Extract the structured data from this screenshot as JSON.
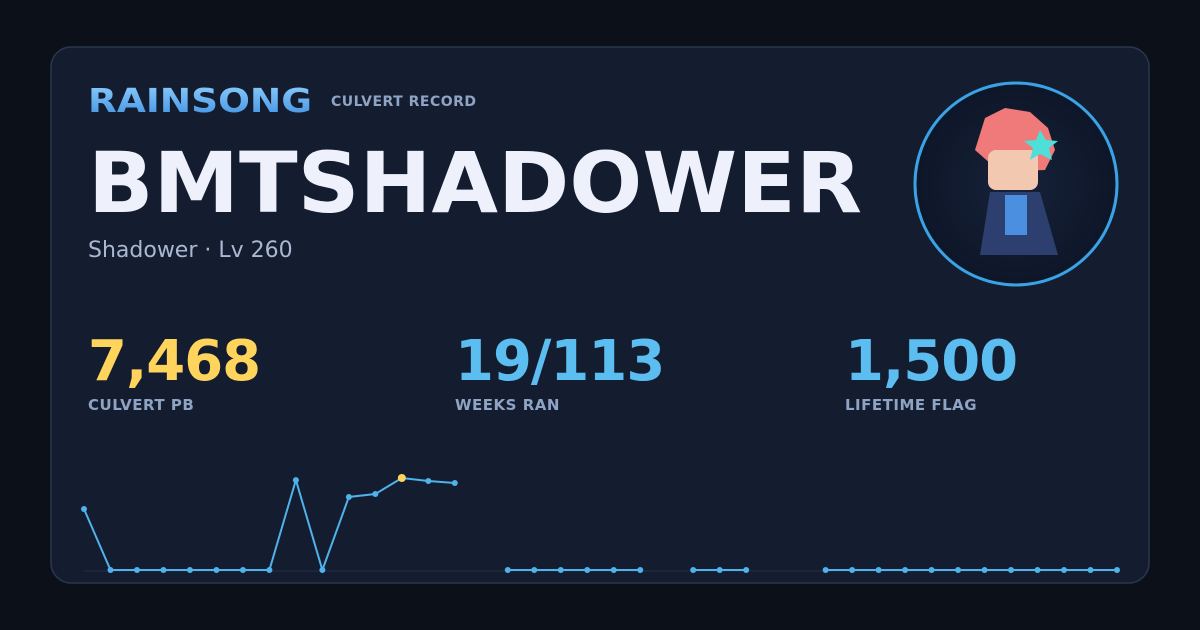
{
  "header": {
    "brand": "RAINSONG",
    "tag": "CULVERT RECORD",
    "name": "BMTSHADOWER",
    "subtitle": "Shadower · Lv 260"
  },
  "stats": [
    {
      "value": "7,468",
      "label": "CULVERT PB",
      "color": "#ffd45c"
    },
    {
      "value": "19/113",
      "label": "WEEKS RAN",
      "color": "#5cbdf0"
    },
    {
      "value": "1,500",
      "label": "LIFETIME FLAG",
      "color": "#5cbdf0"
    }
  ],
  "chart_data": {
    "type": "line",
    "color": "#4fb2ea",
    "highlight_color": "#ffd45c",
    "ylim": [
      0,
      7468
    ],
    "values": [
      4950,
      0,
      0,
      0,
      0,
      0,
      0,
      0,
      7300,
      0,
      5930,
      6170,
      7468,
      7220,
      7060,
      null,
      0,
      0,
      0,
      0,
      0,
      0,
      null,
      0,
      0,
      0,
      null,
      null,
      0,
      0,
      0,
      0,
      0,
      0,
      0,
      0,
      0,
      0,
      0,
      0
    ]
  }
}
